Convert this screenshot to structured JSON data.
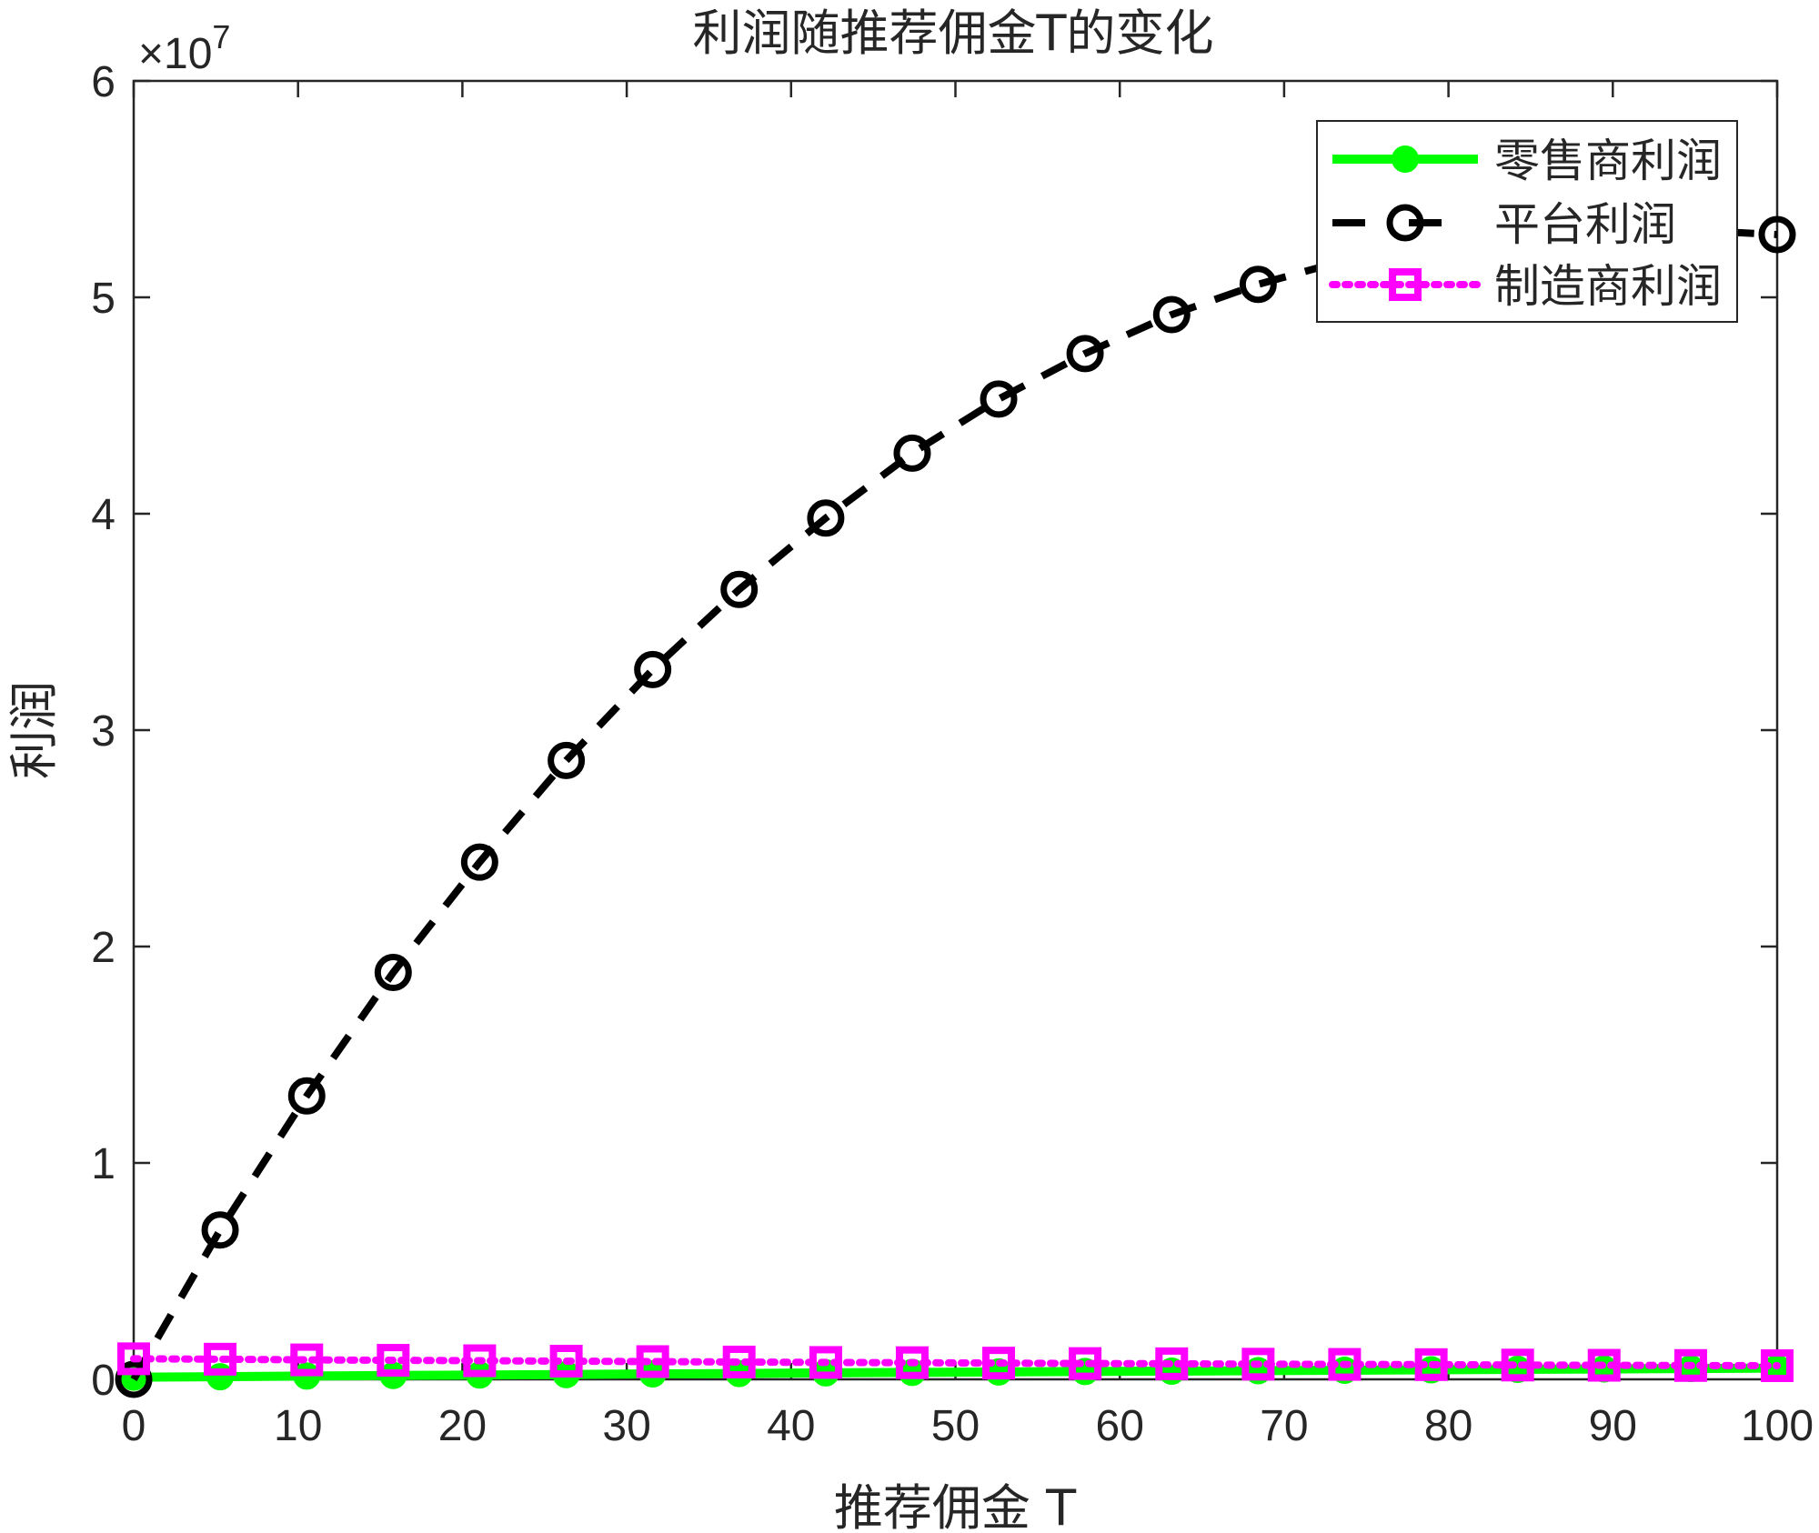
{
  "chart_data": {
    "type": "line",
    "title": "利润随推荐佣金T的变化",
    "xlabel": "推荐佣金 T",
    "ylabel": "利润",
    "y_exponent_label": "×10",
    "y_exponent_power": "7",
    "y_scale_factor": 10000000,
    "xlim": [
      0,
      100
    ],
    "ylim": [
      0,
      6
    ],
    "x_ticks": [
      0,
      10,
      20,
      30,
      40,
      50,
      60,
      70,
      80,
      90,
      100
    ],
    "x_tick_labels": [
      "0",
      "10",
      "20",
      "30",
      "40",
      "50",
      "60",
      "70",
      "80",
      "90",
      "100"
    ],
    "y_ticks": [
      0,
      1,
      2,
      3,
      4,
      5,
      6
    ],
    "y_tick_labels": [
      "0",
      "1",
      "2",
      "3",
      "4",
      "5",
      "6"
    ],
    "grid": false,
    "legend_position": "top-right",
    "x": [
      0,
      5.26,
      10.53,
      15.79,
      21.05,
      26.32,
      31.58,
      36.84,
      42.11,
      47.37,
      52.63,
      57.89,
      63.16,
      68.42,
      73.68,
      78.95,
      84.21,
      89.47,
      94.74,
      100
    ],
    "series": [
      {
        "name": "零售商利润",
        "color": "#00ff00",
        "line_style": "solid",
        "marker": "filled-circle",
        "values": [
          0.01,
          0.012,
          0.015,
          0.018,
          0.02,
          0.022,
          0.025,
          0.027,
          0.03,
          0.032,
          0.034,
          0.036,
          0.038,
          0.04,
          0.042,
          0.044,
          0.046,
          0.048,
          0.05,
          0.052
        ]
      },
      {
        "name": "平台利润",
        "color": "#000000",
        "line_style": "dashed",
        "marker": "open-circle",
        "values": [
          0,
          0.69,
          1.31,
          1.88,
          2.39,
          2.86,
          3.28,
          3.65,
          3.98,
          4.28,
          4.53,
          4.74,
          4.92,
          5.06,
          5.17,
          5.25,
          5.29,
          5.31,
          5.31,
          5.29
        ]
      },
      {
        "name": "制造商利润",
        "color": "#ff00ff",
        "line_style": "dotted",
        "marker": "open-square",
        "values": [
          0.095,
          0.093,
          0.09,
          0.088,
          0.086,
          0.084,
          0.082,
          0.08,
          0.078,
          0.077,
          0.075,
          0.073,
          0.072,
          0.07,
          0.069,
          0.068,
          0.066,
          0.065,
          0.064,
          0.063
        ]
      }
    ]
  }
}
